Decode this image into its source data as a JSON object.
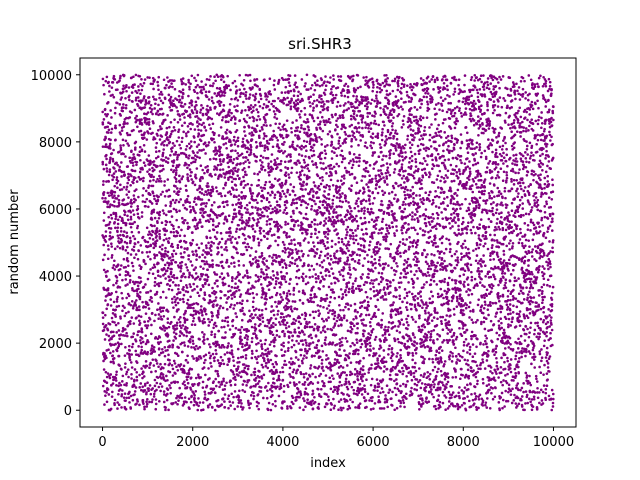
{
  "chart_data": {
    "type": "scatter",
    "title": "sri.SHR3",
    "xlabel": "index",
    "ylabel": "random number",
    "xlim": [
      -500,
      10500
    ],
    "ylim": [
      -500,
      10500
    ],
    "x_ticks": [
      0,
      2000,
      4000,
      6000,
      8000,
      10000
    ],
    "x_tick_labels": [
      "0",
      "2000",
      "4000",
      "6000",
      "8000",
      "10000"
    ],
    "y_ticks": [
      0,
      2000,
      4000,
      6000,
      8000,
      10000
    ],
    "y_tick_labels": [
      "0",
      "2000",
      "4000",
      "6000",
      "8000",
      "10000"
    ],
    "grid": false,
    "marker_color": "#800080",
    "series": [
      {
        "point_count": 10000,
        "x_range": [
          0,
          9999
        ],
        "y_range": [
          0,
          9999
        ],
        "distribution": "uniform pseudo-random"
      }
    ]
  }
}
